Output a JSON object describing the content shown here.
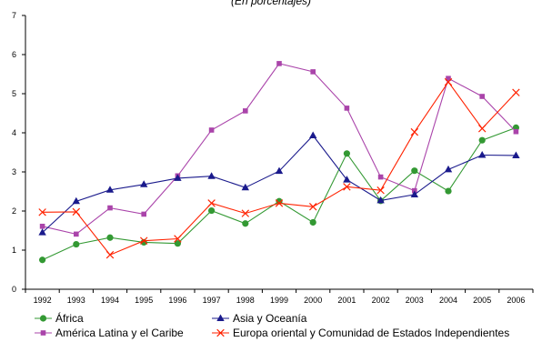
{
  "chart_data": {
    "type": "line",
    "title": "(En porcentajes)",
    "xlabel": "",
    "ylabel": "",
    "ylim": [
      0,
      7
    ],
    "yticks": [
      0,
      1,
      2,
      3,
      4,
      5,
      6,
      7
    ],
    "grid": false,
    "legend_placement": "bottom",
    "categories": [
      "1992",
      "1993",
      "1994",
      "1995",
      "1996",
      "1997",
      "1998",
      "1999",
      "2000",
      "2001",
      "2002",
      "2003",
      "2004",
      "2005",
      "2006"
    ],
    "series": [
      {
        "name": "África",
        "color": "#339933",
        "marker": "circle",
        "values": [
          0.75,
          1.15,
          1.32,
          1.2,
          1.17,
          2.01,
          1.68,
          2.25,
          1.71,
          3.47,
          2.26,
          3.03,
          2.51,
          3.81,
          4.13
        ]
      },
      {
        "name": "América Latina y el Caribe",
        "color": "#aa44aa",
        "marker": "square",
        "values": [
          1.61,
          1.41,
          2.08,
          1.92,
          2.9,
          4.07,
          4.56,
          5.77,
          5.56,
          4.63,
          2.87,
          2.52,
          5.39,
          4.93,
          4.03
        ]
      },
      {
        "name": "Asia y Oceanía",
        "color": "#1a1a8c",
        "marker": "triangle",
        "values": [
          1.45,
          2.25,
          2.54,
          2.68,
          2.84,
          2.89,
          2.6,
          3.02,
          3.93,
          2.8,
          2.27,
          2.42,
          3.06,
          3.43,
          3.42
        ]
      },
      {
        "name": "Europa oriental y Comunidad de Estados Independientes",
        "color": "#ff2200",
        "marker": "x",
        "values": [
          1.97,
          1.98,
          0.88,
          1.24,
          1.29,
          2.2,
          1.94,
          2.2,
          2.11,
          2.62,
          2.53,
          4.02,
          5.3,
          4.11,
          5.03
        ]
      }
    ]
  }
}
